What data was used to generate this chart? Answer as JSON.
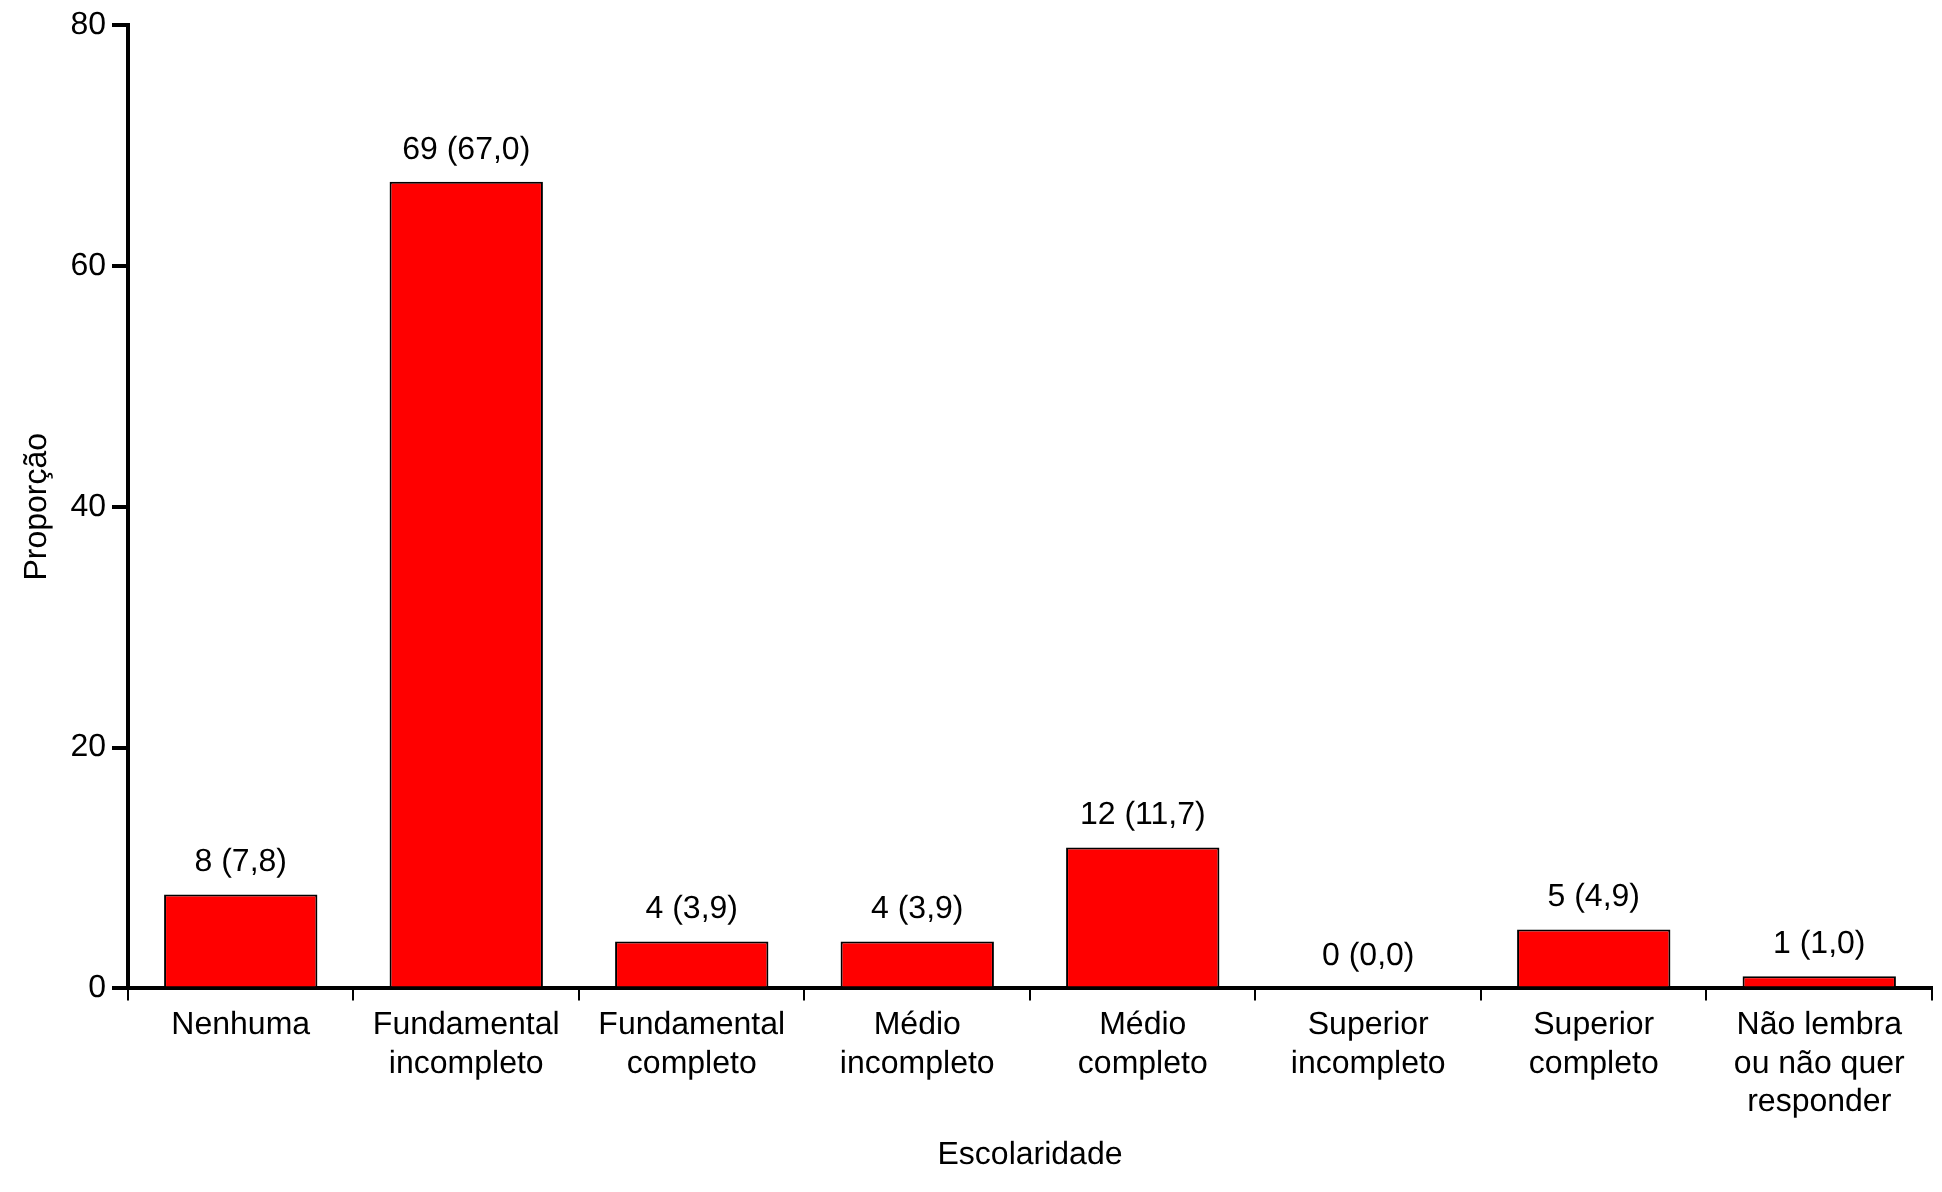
{
  "chart_data": {
    "type": "bar",
    "xlabel": "Escolaridade",
    "ylabel": "Proporção",
    "categories": [
      "Nenhuma",
      "Fundamental incompleto",
      "Fundamental completo",
      "Médio incompleto",
      "Médio completo",
      "Superior incompleto",
      "Superior completo",
      "Não lembra ou não quer responder"
    ],
    "values": [
      7.8,
      67.0,
      3.9,
      3.9,
      11.7,
      0.0,
      4.9,
      1.0
    ],
    "value_labels": [
      "8 (7,8)",
      "69 (67,0)",
      "4 (3,9)",
      "4 (3,9)",
      "12 (11,7)",
      "0 (0,0)",
      "5 (4,9)",
      "1 (1,0)"
    ],
    "color": "#ff0000",
    "ylim": [
      0,
      80
    ],
    "yticks": [
      0,
      20,
      40,
      60,
      80
    ],
    "grid": false,
    "legend": false
  }
}
